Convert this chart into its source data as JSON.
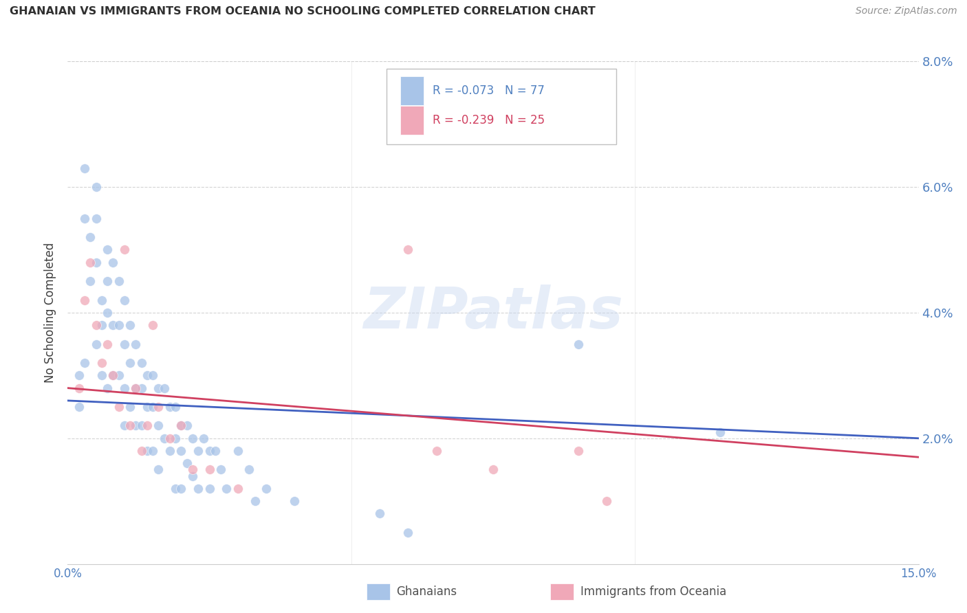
{
  "title": "GHANAIAN VS IMMIGRANTS FROM OCEANIA NO SCHOOLING COMPLETED CORRELATION CHART",
  "source": "Source: ZipAtlas.com",
  "ylabel_label": "No Schooling Completed",
  "legend_label1": "Ghanaians",
  "legend_label2": "Immigrants from Oceania",
  "legend_R1": "R = -0.073",
  "legend_N1": "N = 77",
  "legend_R2": "R = -0.239",
  "legend_N2": "N = 25",
  "watermark": "ZIPatlas",
  "xlim": [
    0.0,
    0.15
  ],
  "ylim": [
    0.0,
    0.08
  ],
  "blue_color": "#a8c4e8",
  "pink_color": "#f0a8b8",
  "blue_line_color": "#4060c0",
  "pink_line_color": "#d04060",
  "title_color": "#303030",
  "axis_tick_color": "#5080c0",
  "grid_color": "#d0d0d0",
  "blue_scatter_x": [
    0.002,
    0.002,
    0.003,
    0.003,
    0.003,
    0.004,
    0.004,
    0.005,
    0.005,
    0.005,
    0.005,
    0.006,
    0.006,
    0.006,
    0.007,
    0.007,
    0.007,
    0.007,
    0.008,
    0.008,
    0.008,
    0.009,
    0.009,
    0.009,
    0.01,
    0.01,
    0.01,
    0.01,
    0.011,
    0.011,
    0.011,
    0.012,
    0.012,
    0.012,
    0.013,
    0.013,
    0.013,
    0.014,
    0.014,
    0.014,
    0.015,
    0.015,
    0.015,
    0.016,
    0.016,
    0.016,
    0.017,
    0.017,
    0.018,
    0.018,
    0.019,
    0.019,
    0.019,
    0.02,
    0.02,
    0.02,
    0.021,
    0.021,
    0.022,
    0.022,
    0.023,
    0.023,
    0.024,
    0.025,
    0.025,
    0.026,
    0.027,
    0.028,
    0.03,
    0.032,
    0.033,
    0.035,
    0.04,
    0.055,
    0.06,
    0.09,
    0.115
  ],
  "blue_scatter_y": [
    0.03,
    0.025,
    0.063,
    0.055,
    0.032,
    0.052,
    0.045,
    0.06,
    0.055,
    0.048,
    0.035,
    0.042,
    0.038,
    0.03,
    0.05,
    0.045,
    0.04,
    0.028,
    0.048,
    0.038,
    0.03,
    0.045,
    0.038,
    0.03,
    0.042,
    0.035,
    0.028,
    0.022,
    0.038,
    0.032,
    0.025,
    0.035,
    0.028,
    0.022,
    0.032,
    0.028,
    0.022,
    0.03,
    0.025,
    0.018,
    0.03,
    0.025,
    0.018,
    0.028,
    0.022,
    0.015,
    0.028,
    0.02,
    0.025,
    0.018,
    0.025,
    0.02,
    0.012,
    0.022,
    0.018,
    0.012,
    0.022,
    0.016,
    0.02,
    0.014,
    0.018,
    0.012,
    0.02,
    0.018,
    0.012,
    0.018,
    0.015,
    0.012,
    0.018,
    0.015,
    0.01,
    0.012,
    0.01,
    0.008,
    0.005,
    0.035,
    0.021
  ],
  "pink_scatter_x": [
    0.002,
    0.003,
    0.004,
    0.005,
    0.006,
    0.007,
    0.008,
    0.009,
    0.01,
    0.011,
    0.012,
    0.013,
    0.014,
    0.015,
    0.016,
    0.018,
    0.02,
    0.022,
    0.025,
    0.03,
    0.06,
    0.065,
    0.075,
    0.09,
    0.095
  ],
  "pink_scatter_y": [
    0.028,
    0.042,
    0.048,
    0.038,
    0.032,
    0.035,
    0.03,
    0.025,
    0.05,
    0.022,
    0.028,
    0.018,
    0.022,
    0.038,
    0.025,
    0.02,
    0.022,
    0.015,
    0.015,
    0.012,
    0.05,
    0.018,
    0.015,
    0.018,
    0.01
  ],
  "blue_line_y_start": 0.026,
  "blue_line_y_end": 0.02,
  "pink_line_y_start": 0.028,
  "pink_line_y_end": 0.017
}
